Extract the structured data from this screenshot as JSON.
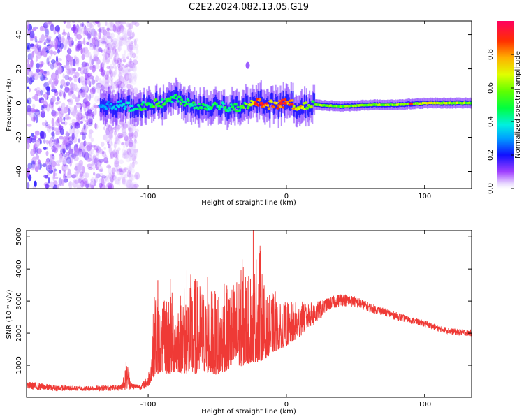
{
  "title": "C2E2.2024.082.13.05.G19",
  "colors": {
    "trace": "#ef3a36",
    "axis": "#000000",
    "background": "#ffffff"
  },
  "chart_data": [
    {
      "type": "heatmap",
      "xlabel": "Height of straight line (km)",
      "ylabel": "Frequency (Hz)",
      "xlim": [
        -188,
        134
      ],
      "ylim": [
        -50,
        48
      ],
      "x_ticks": [
        -100,
        0,
        100
      ],
      "x_tick_labels": [
        "-100",
        "0",
        "100"
      ],
      "y_ticks": [
        -40,
        -20,
        0,
        20,
        40
      ],
      "y_tick_labels": [
        "-40",
        "-20",
        "0",
        "20",
        "40"
      ],
      "grid": false,
      "colorbar": {
        "label": "Normalized spectral amplitude",
        "range": [
          0,
          1
        ],
        "ticks": [
          0,
          0.2,
          0.4,
          0.6,
          0.8
        ],
        "tick_labels": [
          "0.0",
          "0.2",
          "0.4",
          "0.6",
          "0.8"
        ],
        "colormap": "hsv-rainbow (purple to red)"
      },
      "ridge": {
        "x": [
          -130,
          -120,
          -110,
          -100,
          -90,
          -80,
          -70,
          -60,
          -50,
          -40,
          -30,
          -20,
          -10,
          0,
          10,
          20,
          40,
          60,
          80,
          100,
          120,
          134
        ],
        "freq_hz": [
          -2,
          -1,
          -3,
          -1,
          0,
          3,
          0,
          -2,
          -1,
          -3,
          -2,
          0,
          -1,
          0,
          -2,
          -1,
          -2,
          -1,
          -1,
          0,
          0,
          0
        ],
        "amplitude": [
          0.3,
          0.35,
          0.45,
          0.5,
          0.55,
          0.5,
          0.5,
          0.45,
          0.5,
          0.5,
          0.55,
          0.9,
          0.85,
          0.85,
          0.75,
          0.6,
          0.6,
          0.6,
          0.65,
          0.7,
          0.65,
          0.6
        ],
        "bright_spots_x": [
          -22,
          -18,
          -4,
          -1,
          4,
          90
        ]
      },
      "noise_region_x": [
        -188,
        -108
      ]
    },
    {
      "type": "line",
      "xlabel": "Height of straight line (km)",
      "ylabel": "SNR (10 * v/v)",
      "xlim": [
        -188,
        134
      ],
      "ylim": [
        0,
        5200
      ],
      "x_ticks": [
        -100,
        0,
        100
      ],
      "x_tick_labels": [
        "-100",
        "0",
        "100"
      ],
      "y_ticks": [
        1000,
        2000,
        3000,
        4000,
        5000
      ],
      "y_tick_labels": [
        "1000",
        "2000",
        "3000",
        "4000",
        "5000"
      ],
      "grid": false,
      "envelope": {
        "x": [
          -188,
          -170,
          -150,
          -130,
          -120,
          -115,
          -112,
          -105,
          -100,
          -98,
          -95,
          -90,
          -85,
          -80,
          -70,
          -60,
          -50,
          -40,
          -30,
          -25,
          -20,
          -15,
          -10,
          -5,
          0,
          10,
          20,
          30,
          40,
          50,
          60,
          70,
          80,
          90,
          100,
          110,
          120,
          134
        ],
        "y_low": [
          250,
          200,
          200,
          200,
          220,
          220,
          250,
          250,
          300,
          500,
          700,
          800,
          700,
          800,
          700,
          800,
          700,
          900,
          1000,
          1100,
          1100,
          1200,
          1400,
          1500,
          1600,
          1900,
          2200,
          2700,
          2850,
          2800,
          2650,
          2550,
          2400,
          2300,
          2200,
          2050,
          1950,
          1900
        ],
        "y_high": [
          500,
          400,
          350,
          380,
          400,
          1100,
          450,
          400,
          700,
          1500,
          3600,
          2800,
          3500,
          3200,
          3900,
          3500,
          3300,
          3600,
          4200,
          3500,
          5200,
          3100,
          3300,
          2900,
          3000,
          3000,
          2950,
          3100,
          3250,
          3150,
          2950,
          2800,
          2650,
          2500,
          2400,
          2250,
          2150,
          2100
        ]
      },
      "spikes": [
        {
          "x": -116,
          "y": 1100
        },
        {
          "x": -93,
          "y": 3650
        },
        {
          "x": -84,
          "y": 3700
        },
        {
          "x": -72,
          "y": 3950
        },
        {
          "x": -66,
          "y": 3700
        },
        {
          "x": -57,
          "y": 3750
        },
        {
          "x": -45,
          "y": 3550
        },
        {
          "x": -32,
          "y": 4300
        },
        {
          "x": -26,
          "y": 3700
        },
        {
          "x": -24,
          "y": 5200
        },
        {
          "x": -20,
          "y": 3500
        },
        {
          "x": -8,
          "y": 3300
        }
      ]
    }
  ]
}
